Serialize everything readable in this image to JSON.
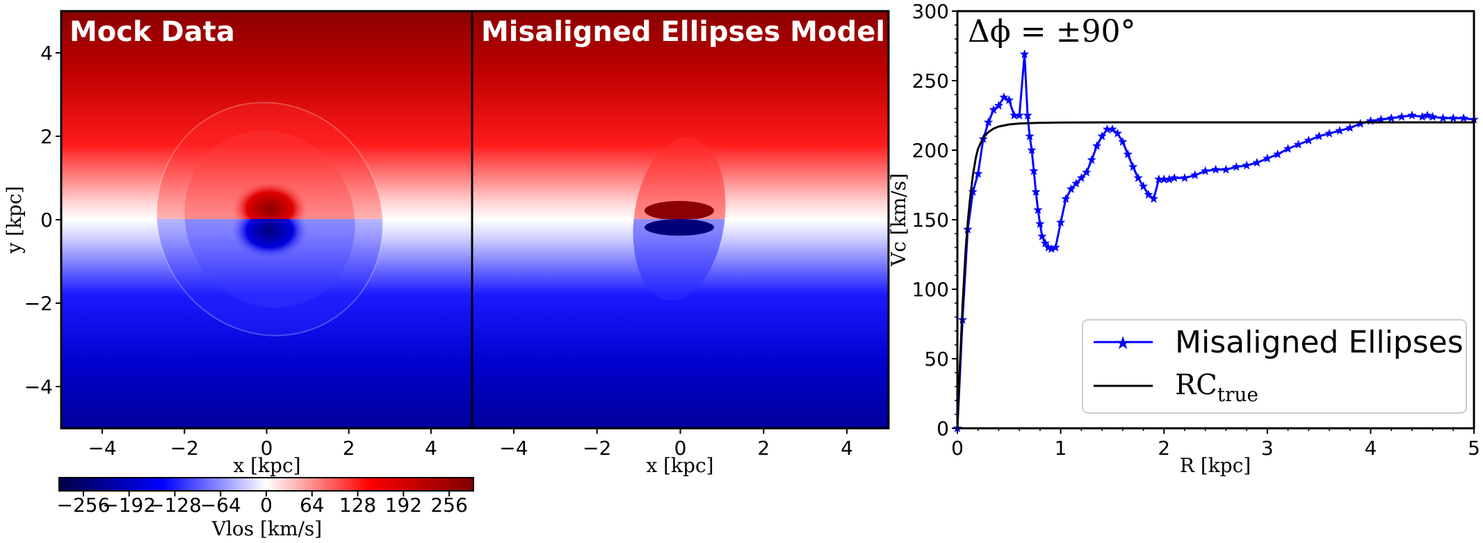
{
  "chart_data": [
    {
      "type": "heatmap",
      "panel": "Mock Data",
      "title": "Mock Data",
      "xlabel": "x [kpc]",
      "ylabel": "y [kpc]",
      "xlim": [
        -5,
        5
      ],
      "ylim": [
        -5,
        5
      ],
      "xticks": [
        -4,
        -2,
        0,
        2,
        4
      ],
      "yticks": [
        -4,
        -2,
        0,
        2,
        4
      ],
      "colormap": "seismic",
      "color_range": [
        -290,
        290
      ]
    },
    {
      "type": "heatmap",
      "panel": "Misaligned Ellipses Model",
      "title": "Misaligned Ellipses Model",
      "xlabel": "x [kpc]",
      "ylabel": "",
      "xlim": [
        -5,
        5
      ],
      "ylim": [
        -5,
        5
      ],
      "xticks": [
        -4,
        -2,
        0,
        2,
        4
      ],
      "colormap": "seismic",
      "color_range": [
        -290,
        290
      ]
    },
    {
      "type": "line",
      "panel": "rotation curve",
      "annotation": "Δϕ = ±90°",
      "xlabel": "R [kpc]",
      "ylabel": "Vc [km/s]",
      "xlim": [
        0,
        5
      ],
      "ylim": [
        0,
        300
      ],
      "xticks": [
        0,
        1,
        2,
        3,
        4,
        5
      ],
      "yticks": [
        0,
        50,
        100,
        150,
        200,
        250,
        300
      ],
      "legend_position": "lower-right",
      "series": [
        {
          "name": "Misaligned Ellipses",
          "color": "#0000ff",
          "marker": "star",
          "x": [
            0.0,
            0.05,
            0.1,
            0.15,
            0.2,
            0.25,
            0.3,
            0.35,
            0.4,
            0.45,
            0.5,
            0.55,
            0.6,
            0.65,
            0.68,
            0.7,
            0.72,
            0.74,
            0.76,
            0.78,
            0.8,
            0.82,
            0.85,
            0.88,
            0.91,
            0.95,
            1.0,
            1.05,
            1.1,
            1.15,
            1.2,
            1.25,
            1.3,
            1.35,
            1.4,
            1.45,
            1.5,
            1.55,
            1.6,
            1.65,
            1.7,
            1.75,
            1.8,
            1.85,
            1.9,
            1.95,
            2.0,
            2.05,
            2.1,
            2.2,
            2.3,
            2.4,
            2.5,
            2.6,
            2.7,
            2.8,
            2.9,
            3.0,
            3.1,
            3.2,
            3.3,
            3.4,
            3.5,
            3.6,
            3.7,
            3.8,
            3.9,
            4.0,
            4.1,
            4.2,
            4.3,
            4.4,
            4.5,
            4.55,
            4.6,
            4.7,
            4.8,
            4.9,
            5.0
          ],
          "y": [
            0,
            78,
            143,
            170,
            183,
            208,
            220,
            229,
            232,
            238,
            236,
            225,
            225,
            269,
            225,
            210,
            200,
            185,
            170,
            157,
            147,
            138,
            133,
            130,
            129,
            130,
            148,
            165,
            172,
            176,
            180,
            184,
            193,
            203,
            210,
            215,
            215,
            212,
            206,
            197,
            188,
            180,
            174,
            168,
            165,
            179,
            179,
            179,
            180,
            180,
            182,
            185,
            186,
            186,
            188,
            189,
            191,
            194,
            197,
            201,
            204,
            207,
            210,
            212,
            214,
            216,
            219,
            221,
            222,
            223,
            224,
            225,
            224,
            225,
            224,
            223,
            223,
            223,
            222
          ]
        },
        {
          "name": "RC_true",
          "color": "#000000",
          "marker": "none",
          "x": [
            0.0,
            0.02,
            0.05,
            0.08,
            0.1,
            0.12,
            0.15,
            0.18,
            0.2,
            0.25,
            0.3,
            0.35,
            0.4,
            0.5,
            0.6,
            0.8,
            1.0,
            1.5,
            2.0,
            3.0,
            4.0,
            5.0
          ],
          "y": [
            0,
            38,
            88,
            128,
            148,
            163,
            182,
            195,
            201,
            209,
            213,
            215.5,
            217,
            218.5,
            219.2,
            219.7,
            219.9,
            220,
            220,
            220,
            220,
            220
          ]
        }
      ]
    }
  ],
  "colorbar": {
    "ticks": [
      "−256",
      "−192",
      "−128",
      "−64",
      "0",
      "64",
      "128",
      "192",
      "256"
    ],
    "tick_values": [
      -256,
      -192,
      -128,
      -64,
      0,
      64,
      128,
      192,
      256
    ],
    "label": "Vlos [km/s]"
  },
  "legend": {
    "entries": [
      "Misaligned Ellipses",
      "RC",
      "true"
    ]
  }
}
